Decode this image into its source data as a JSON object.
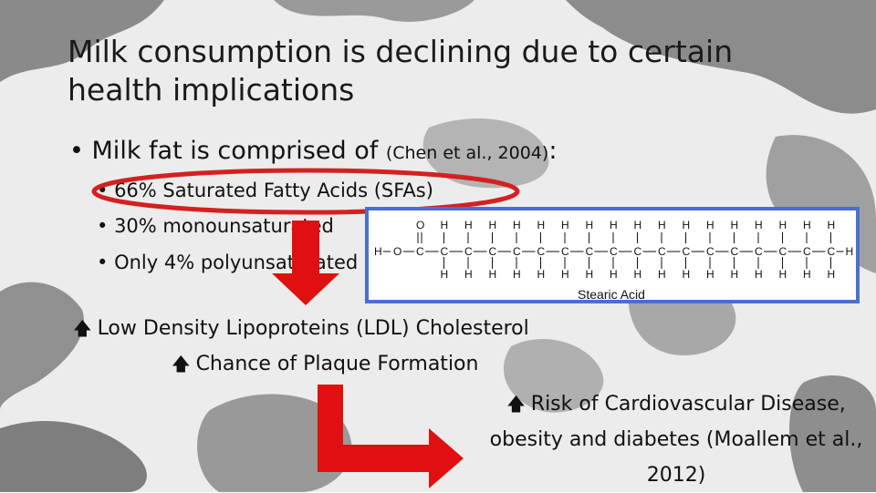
{
  "slide": {
    "title": "Milk consumption is declining due to certain health implications",
    "bullet_main": "Milk fat is comprised of",
    "bullet_main_cite": "(Chen et al., 2004)",
    "bullet_main_colon": ":",
    "sub_bullets": [
      "66% Saturated Fatty Acids (SFAs)",
      "30% monounsaturated",
      "Only 4% polyunsaturated"
    ],
    "effects": {
      "ldl": "Low Density Lipoproteins (LDL) Cholesterol",
      "plaque": "Chance of Plaque Formation",
      "risk": "Risk of Cardiovascular Disease, obesity and diabetes (Moallem et al., 2012)"
    },
    "up_arrow_icon": "up-arrow-icon",
    "colors": {
      "highlight_ring": "#d42020",
      "arrow": "#e01010",
      "chem_border": "#4a6fd0"
    }
  },
  "chemical": {
    "caption": "Stearic Acid",
    "top_row": [
      "O",
      "H",
      "H",
      "H",
      "H",
      "H",
      "H",
      "H",
      "H",
      "H",
      "H",
      "H",
      "H",
      "H",
      "H",
      "H",
      "H",
      "H"
    ],
    "left": "H",
    "o_label": "O",
    "chain": [
      "C",
      "C",
      "C",
      "C",
      "C",
      "C",
      "C",
      "C",
      "C",
      "C",
      "C",
      "C",
      "C",
      "C",
      "C",
      "C",
      "C",
      "C"
    ],
    "end": "H",
    "bottom_h": "H"
  }
}
